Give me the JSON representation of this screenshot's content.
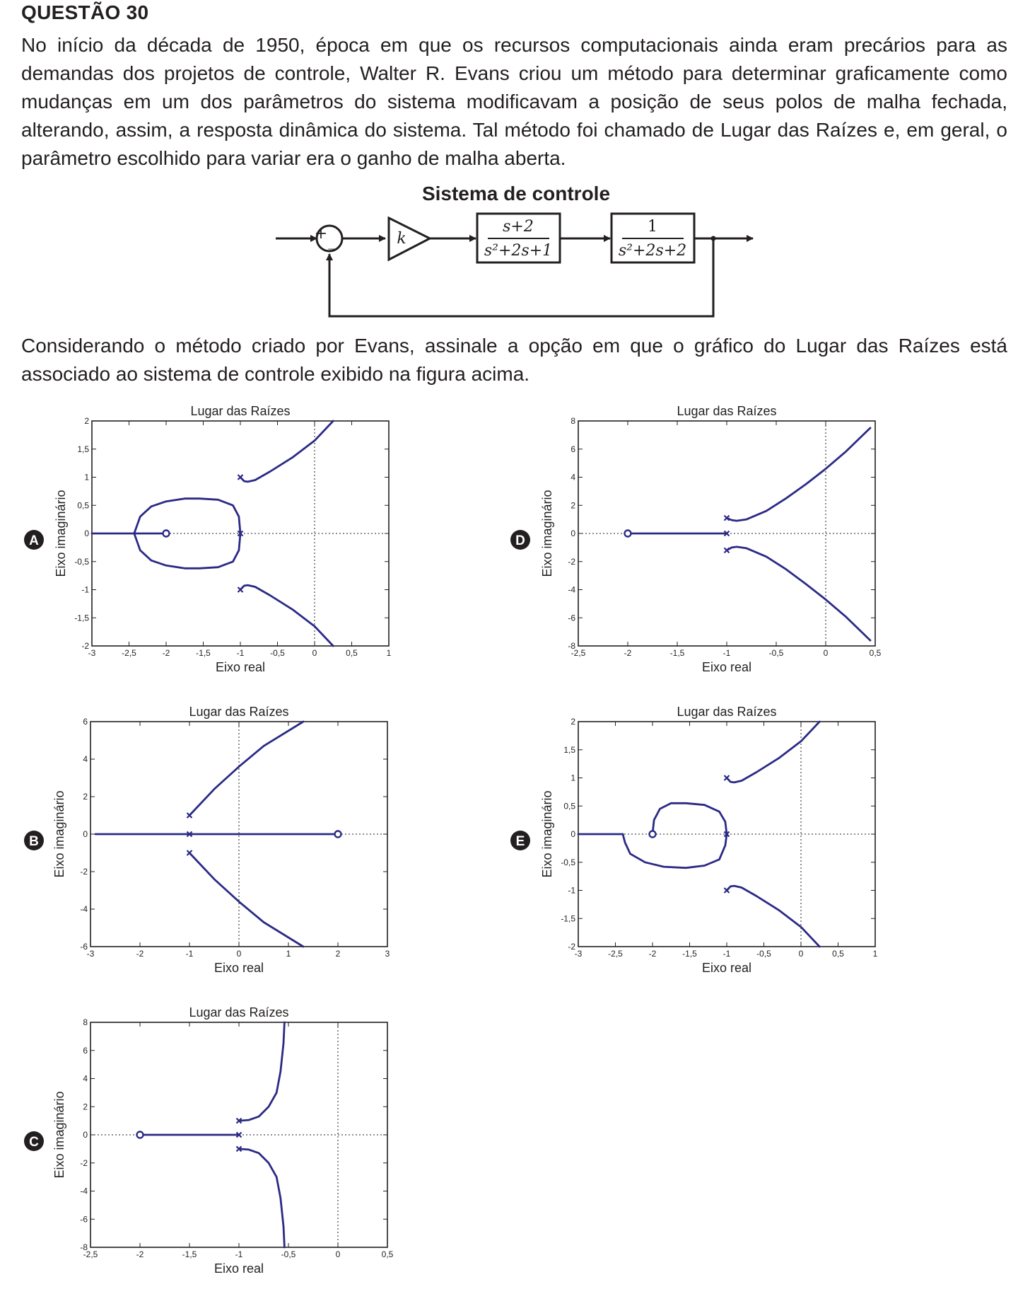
{
  "question": {
    "title": "QUESTÃO 30",
    "paragraph1": "No início da década de 1950, época em que os recursos computacionais ainda eram precários para as demandas dos projetos de controle, Walter R. Evans criou um método para determinar graficamente como mudanças em um dos parâmetros do sistema modificavam a posição de seus polos de malha fechada, alterando, assim, a resposta dinâmica do sistema. Tal método foi chamado de Lugar das Raízes e, em geral, o parâmetro escolhido para variar era o ganho de malha aberta.",
    "paragraph2": "Considerando o método criado por Evans, assinale a opção em que o gráfico do Lugar das Raízes está associado ao sistema de controle exibido na figura acima."
  },
  "diagram": {
    "title": "Sistema de controle",
    "sum_plus": "+",
    "sum_minus": "_",
    "gain": "k",
    "block1": {
      "numerator": "s+2",
      "denominator": "s²+2s+1"
    },
    "block2": {
      "numerator": "1",
      "denominator": "s²+2s+2"
    }
  },
  "chart_data": [
    {
      "option": "A",
      "type": "line",
      "title": "Lugar das Raízes",
      "xlabel": "Eixo real",
      "ylabel": "Eixo imaginário",
      "xlim": [
        -3,
        1
      ],
      "ylim": [
        -2,
        2
      ],
      "xticks": [
        "-3",
        "-2,5",
        "-2",
        "-1,5",
        "-1",
        "-0,5",
        "0",
        "0,5",
        "1"
      ],
      "yticks": [
        "2",
        "1,5",
        "1",
        "0,5",
        "0",
        "-0,5",
        "-1",
        "-1,5",
        "-2"
      ],
      "poles": [
        [
          -1,
          1
        ],
        [
          -1,
          -1
        ],
        [
          -1,
          0
        ]
      ],
      "zeros": [
        [
          -2,
          0
        ]
      ],
      "series": [
        {
          "name": "branch-upper",
          "x": [
            -1,
            -0.95,
            -0.9,
            -0.8,
            -0.6,
            -0.3,
            0,
            0.25
          ],
          "y": [
            1,
            0.93,
            0.92,
            0.95,
            1.1,
            1.35,
            1.65,
            2
          ]
        },
        {
          "name": "branch-lower",
          "x": [
            -1,
            -0.95,
            -0.9,
            -0.8,
            -0.6,
            -0.3,
            0,
            0.25
          ],
          "y": [
            -1,
            -0.93,
            -0.92,
            -0.95,
            -1.1,
            -1.35,
            -1.65,
            -2
          ]
        },
        {
          "name": "branch-loop",
          "x": [
            -1,
            -1.02,
            -1.1,
            -1.3,
            -1.55,
            -1.75,
            -2.0,
            -2.2,
            -2.35,
            -2.43,
            -2.35,
            -2.2,
            -2.0,
            -1.75,
            -1.55,
            -1.3,
            -1.1,
            -1.02,
            -1
          ],
          "y": [
            0,
            0.3,
            0.5,
            0.6,
            0.62,
            0.62,
            0.57,
            0.48,
            0.3,
            0,
            -0.3,
            -0.48,
            -0.57,
            -0.62,
            -0.62,
            -0.6,
            -0.5,
            -0.3,
            0
          ]
        },
        {
          "name": "branch-real",
          "x": [
            -3,
            -2
          ],
          "y": [
            0,
            0
          ]
        }
      ]
    },
    {
      "option": "B",
      "type": "line",
      "title": "Lugar das Raízes",
      "xlabel": "Eixo real",
      "ylabel": "Eixo imaginário",
      "xlim": [
        -3,
        3
      ],
      "ylim": [
        -6,
        6
      ],
      "xticks": [
        "-3",
        "-2",
        "-1",
        "0",
        "1",
        "2",
        "3"
      ],
      "yticks": [
        "6",
        "4",
        "2",
        "0",
        "-2",
        "-4",
        "-6"
      ],
      "poles": [
        [
          -1,
          1
        ],
        [
          -1,
          -1
        ],
        [
          -1,
          0
        ]
      ],
      "zeros": [
        [
          2,
          0
        ]
      ],
      "series": [
        {
          "name": "branch-upper",
          "x": [
            -1,
            -0.5,
            0,
            0.5,
            1.3
          ],
          "y": [
            1,
            2.4,
            3.6,
            4.7,
            6
          ]
        },
        {
          "name": "branch-lower",
          "x": [
            -1,
            -0.5,
            0,
            0.5,
            1.3
          ],
          "y": [
            -1,
            -2.4,
            -3.6,
            -4.7,
            -6
          ]
        },
        {
          "name": "branch-real",
          "x": [
            -2.9,
            2
          ],
          "y": [
            0,
            0
          ]
        }
      ]
    },
    {
      "option": "C",
      "type": "line",
      "title": "Lugar das Raízes",
      "xlabel": "Eixo real",
      "ylabel": "Eixo imaginário",
      "xlim": [
        -2.5,
        0.5
      ],
      "ylim": [
        -8,
        8
      ],
      "xticks": [
        "-2,5",
        "-2",
        "-1,5",
        "-1",
        "-0,5",
        "0",
        "0,5"
      ],
      "yticks": [
        "8",
        "6",
        "4",
        "2",
        "0",
        "-2",
        "-4",
        "-6",
        "-8"
      ],
      "poles": [
        [
          -1,
          1
        ],
        [
          -1,
          -1
        ],
        [
          -1,
          0
        ]
      ],
      "zeros": [
        [
          -2,
          0
        ]
      ],
      "series": [
        {
          "name": "branch-upper",
          "x": [
            -1,
            -0.9,
            -0.8,
            -0.7,
            -0.62,
            -0.58,
            -0.55,
            -0.54
          ],
          "y": [
            1,
            1.05,
            1.3,
            2.0,
            3.0,
            4.5,
            6.5,
            8
          ]
        },
        {
          "name": "branch-lower",
          "x": [
            -1,
            -0.9,
            -0.8,
            -0.7,
            -0.62,
            -0.58,
            -0.55,
            -0.54
          ],
          "y": [
            -1,
            -1.05,
            -1.3,
            -2.0,
            -3.0,
            -4.5,
            -6.5,
            -8
          ]
        },
        {
          "name": "branch-real",
          "x": [
            -2,
            -1
          ],
          "y": [
            0,
            0
          ]
        }
      ]
    },
    {
      "option": "D",
      "type": "line",
      "title": "Lugar das Raízes",
      "xlabel": "Eixo real",
      "ylabel": "Eixo imaginário",
      "xlim": [
        -2.5,
        0.5
      ],
      "ylim": [
        -8,
        8
      ],
      "xticks": [
        "-2,5",
        "-2",
        "-1,5",
        "-1",
        "-0,5",
        "0",
        "0,5"
      ],
      "yticks": [
        "8",
        "6",
        "4",
        "2",
        "0",
        "-2",
        "-4",
        "-6",
        "-8"
      ],
      "poles": [
        [
          -1,
          1.1
        ],
        [
          -1,
          -1.2
        ],
        [
          -1,
          0
        ]
      ],
      "zeros": [
        [
          -2,
          0
        ]
      ],
      "series": [
        {
          "name": "branch-upper",
          "x": [
            -1,
            -0.95,
            -0.9,
            -0.8,
            -0.6,
            -0.4,
            -0.2,
            0,
            0.2,
            0.45
          ],
          "y": [
            1.1,
            0.95,
            0.9,
            1.0,
            1.6,
            2.5,
            3.5,
            4.6,
            5.8,
            7.5
          ]
        },
        {
          "name": "branch-lower",
          "x": [
            -1,
            -0.95,
            -0.9,
            -0.8,
            -0.6,
            -0.4,
            -0.2,
            0,
            0.2,
            0.45
          ],
          "y": [
            -1.2,
            -1.0,
            -0.95,
            -1.05,
            -1.65,
            -2.55,
            -3.6,
            -4.7,
            -5.9,
            -7.6
          ]
        },
        {
          "name": "branch-real",
          "x": [
            -2,
            -1
          ],
          "y": [
            0,
            0
          ]
        }
      ]
    },
    {
      "option": "E",
      "type": "line",
      "title": "Lugar das Raízes",
      "xlabel": "Eixo real",
      "ylabel": "Eixo imaginário",
      "xlim": [
        -3,
        1
      ],
      "ylim": [
        -2,
        2
      ],
      "xticks": [
        "-3",
        "-2,5",
        "-2",
        "-1,5",
        "-1",
        "-0,5",
        "0",
        "0,5",
        "1"
      ],
      "yticks": [
        "2",
        "1,5",
        "1",
        "0,5",
        "0",
        "-0,5",
        "-1",
        "-1,5",
        "-2"
      ],
      "poles": [
        [
          -1,
          1
        ],
        [
          -1,
          -1
        ],
        [
          -1,
          0
        ]
      ],
      "zeros": [
        [
          -2,
          0
        ]
      ],
      "series": [
        {
          "name": "branch-upper",
          "x": [
            -1,
            -0.95,
            -0.9,
            -0.8,
            -0.6,
            -0.3,
            0,
            0.25
          ],
          "y": [
            1,
            0.93,
            0.92,
            0.95,
            1.1,
            1.35,
            1.65,
            2
          ]
        },
        {
          "name": "branch-lower",
          "x": [
            -1,
            -0.95,
            -0.9,
            -0.8,
            -0.6,
            -0.3,
            0,
            0.25
          ],
          "y": [
            -1,
            -0.93,
            -0.92,
            -0.95,
            -1.1,
            -1.35,
            -1.65,
            -2
          ]
        },
        {
          "name": "branch-loop",
          "x": [
            -2,
            -1.98,
            -1.9,
            -1.75,
            -1.55,
            -1.3,
            -1.1,
            -1.02,
            -1.0,
            -1.02,
            -1.1,
            -1.3,
            -1.55,
            -1.85,
            -2.1,
            -2.3,
            -2.37,
            -2.4
          ],
          "y": [
            0,
            0.25,
            0.45,
            0.55,
            0.55,
            0.52,
            0.4,
            0.22,
            0,
            -0.2,
            -0.45,
            -0.56,
            -0.6,
            -0.58,
            -0.5,
            -0.35,
            -0.15,
            0
          ]
        },
        {
          "name": "branch-real",
          "x": [
            -3,
            -2.4
          ],
          "y": [
            0,
            0
          ]
        }
      ]
    }
  ]
}
